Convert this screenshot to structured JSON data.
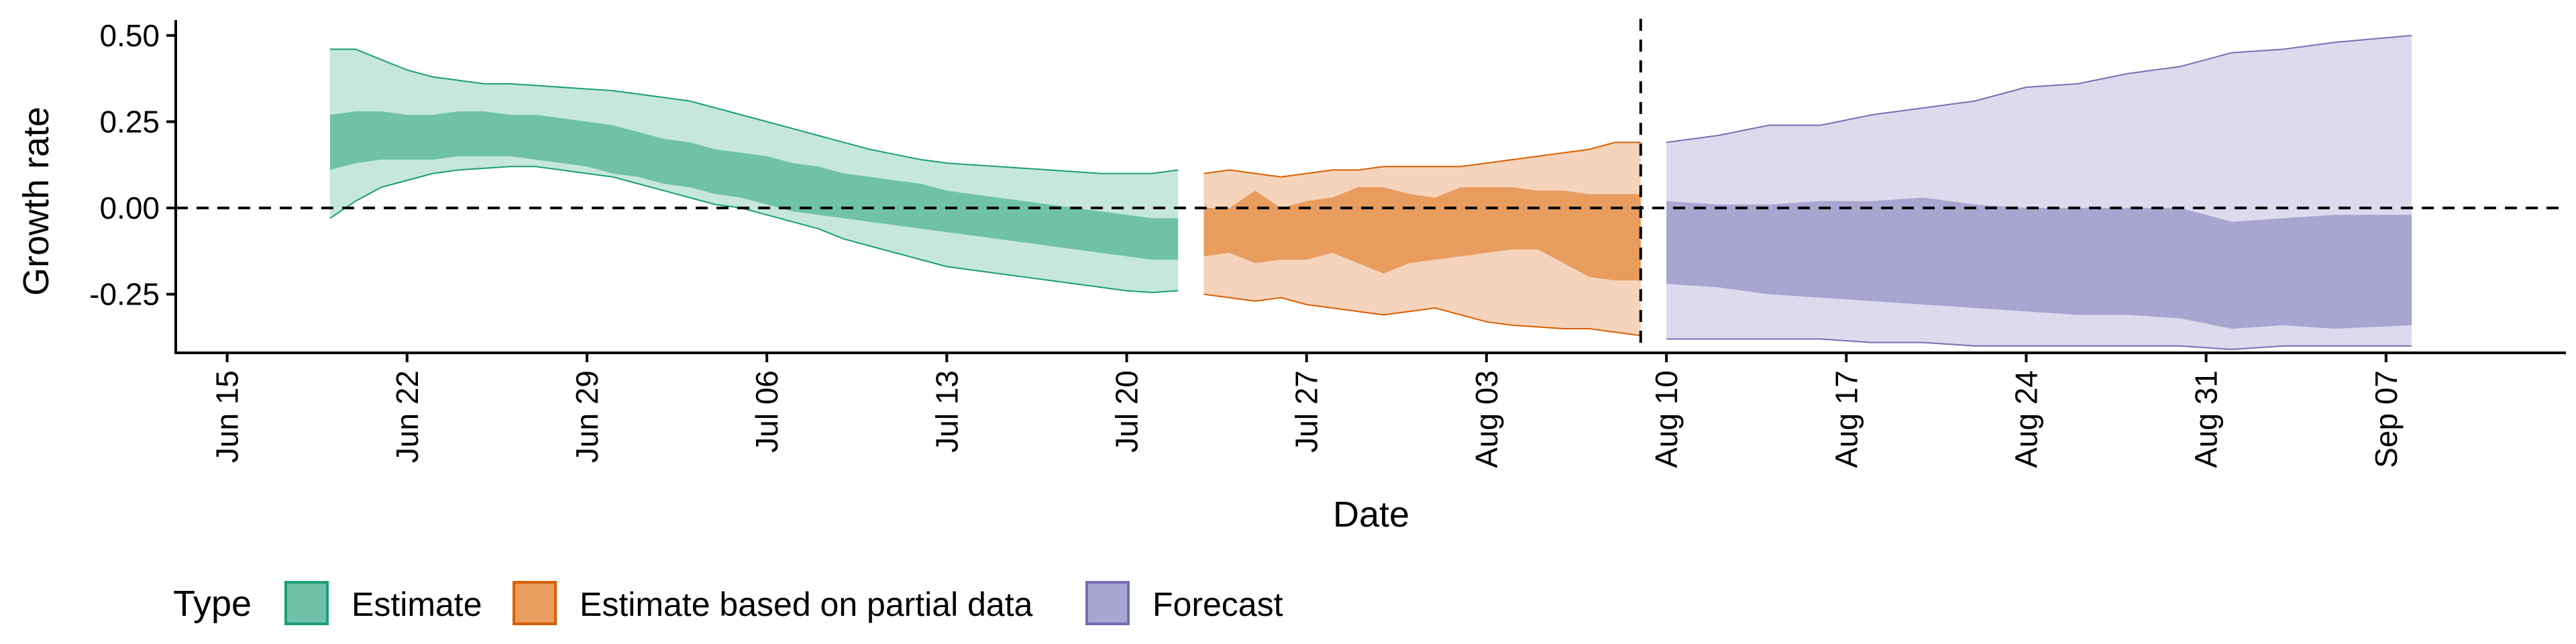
{
  "chart_data": {
    "type": "area",
    "xlabel": "Date",
    "ylabel": "Growth rate",
    "x_range": [
      "2020-06-13",
      "2020-09-14"
    ],
    "ylim": [
      -0.42,
      0.56
    ],
    "yticks": [
      {
        "value": 0.5,
        "label": "0.50"
      },
      {
        "value": 0.25,
        "label": "0.25"
      },
      {
        "value": 0.0,
        "label": "0.00"
      },
      {
        "value": -0.25,
        "label": "-0.25"
      }
    ],
    "xticks": [
      {
        "date": "2020-06-15",
        "label": "Jun 15"
      },
      {
        "date": "2020-06-22",
        "label": "Jun 22"
      },
      {
        "date": "2020-06-29",
        "label": "Jun 29"
      },
      {
        "date": "2020-07-06",
        "label": "Jul 06"
      },
      {
        "date": "2020-07-13",
        "label": "Jul 13"
      },
      {
        "date": "2020-07-20",
        "label": "Jul 20"
      },
      {
        "date": "2020-07-27",
        "label": "Jul 27"
      },
      {
        "date": "2020-08-03",
        "label": "Aug 03"
      },
      {
        "date": "2020-08-10",
        "label": "Aug 10"
      },
      {
        "date": "2020-08-17",
        "label": "Aug 17"
      },
      {
        "date": "2020-08-24",
        "label": "Aug 24"
      },
      {
        "date": "2020-08-31",
        "label": "Aug 31"
      },
      {
        "date": "2020-09-07",
        "label": "Sep 07"
      }
    ],
    "reference_lines": [
      {
        "axis": "y",
        "value": 0.0,
        "style": "dashed"
      },
      {
        "axis": "x",
        "date": "2020-08-09",
        "style": "dashed"
      }
    ],
    "grid": false,
    "legend": {
      "title": "Type",
      "position": "bottom-left",
      "entries": [
        {
          "label": "Estimate",
          "fill": "#6fc2a8",
          "stroke": "#1b9e77"
        },
        {
          "label": "Estimate based on partial data",
          "fill": "#e89c5e",
          "stroke": "#d95f02"
        },
        {
          "label": "Forecast",
          "fill": "#a9a5d1",
          "stroke": "#7570b3"
        }
      ]
    },
    "series": [
      {
        "name": "Estimate",
        "outer_fill": "#c5e7dc",
        "inner_fill": "#6fc2a8",
        "stroke": "#1b9e77",
        "x": [
          "2020-06-19",
          "2020-06-20",
          "2020-06-21",
          "2020-06-22",
          "2020-06-23",
          "2020-06-24",
          "2020-06-25",
          "2020-06-26",
          "2020-06-27",
          "2020-06-28",
          "2020-06-29",
          "2020-06-30",
          "2020-07-01",
          "2020-07-02",
          "2020-07-03",
          "2020-07-04",
          "2020-07-05",
          "2020-07-06",
          "2020-07-07",
          "2020-07-08",
          "2020-07-09",
          "2020-07-10",
          "2020-07-11",
          "2020-07-12",
          "2020-07-13",
          "2020-07-14",
          "2020-07-15",
          "2020-07-16",
          "2020-07-17",
          "2020-07-18",
          "2020-07-19",
          "2020-07-20",
          "2020-07-21",
          "2020-07-22"
        ],
        "upper90": [
          0.46,
          0.46,
          0.43,
          0.4,
          0.38,
          0.37,
          0.36,
          0.36,
          0.355,
          0.35,
          0.345,
          0.34,
          0.33,
          0.32,
          0.31,
          0.29,
          0.27,
          0.25,
          0.23,
          0.21,
          0.19,
          0.17,
          0.155,
          0.14,
          0.13,
          0.125,
          0.12,
          0.115,
          0.11,
          0.105,
          0.1,
          0.1,
          0.1,
          0.11
        ],
        "upper50": [
          0.27,
          0.28,
          0.28,
          0.27,
          0.27,
          0.28,
          0.28,
          0.27,
          0.27,
          0.26,
          0.25,
          0.24,
          0.22,
          0.2,
          0.19,
          0.17,
          0.16,
          0.15,
          0.13,
          0.12,
          0.1,
          0.09,
          0.08,
          0.07,
          0.05,
          0.04,
          0.03,
          0.02,
          0.01,
          0.0,
          -0.01,
          -0.02,
          -0.03,
          -0.03
        ],
        "lower50": [
          0.11,
          0.13,
          0.14,
          0.14,
          0.14,
          0.15,
          0.15,
          0.15,
          0.14,
          0.13,
          0.12,
          0.1,
          0.09,
          0.07,
          0.06,
          0.04,
          0.03,
          0.01,
          -0.01,
          -0.02,
          -0.03,
          -0.04,
          -0.05,
          -0.06,
          -0.07,
          -0.08,
          -0.09,
          -0.1,
          -0.11,
          -0.12,
          -0.13,
          -0.14,
          -0.15,
          -0.15
        ],
        "lower90": [
          -0.03,
          0.02,
          0.06,
          0.08,
          0.1,
          0.11,
          0.115,
          0.12,
          0.12,
          0.11,
          0.1,
          0.09,
          0.07,
          0.05,
          0.03,
          0.01,
          0.0,
          -0.02,
          -0.04,
          -0.06,
          -0.09,
          -0.11,
          -0.13,
          -0.15,
          -0.17,
          -0.18,
          -0.19,
          -0.2,
          -0.21,
          -0.22,
          -0.23,
          -0.24,
          -0.245,
          -0.24
        ]
      },
      {
        "name": "Estimate based on partial data",
        "outer_fill": "#f5d4bb",
        "inner_fill": "#e89c5e",
        "stroke": "#d95f02",
        "x": [
          "2020-07-23",
          "2020-07-24",
          "2020-07-25",
          "2020-07-26",
          "2020-07-27",
          "2020-07-28",
          "2020-07-29",
          "2020-07-30",
          "2020-07-31",
          "2020-08-01",
          "2020-08-02",
          "2020-08-03",
          "2020-08-04",
          "2020-08-05",
          "2020-08-06",
          "2020-08-07",
          "2020-08-08",
          "2020-08-09"
        ],
        "upper90": [
          0.1,
          0.11,
          0.1,
          0.09,
          0.1,
          0.11,
          0.11,
          0.12,
          0.12,
          0.12,
          0.12,
          0.13,
          0.14,
          0.15,
          0.16,
          0.17,
          0.19,
          0.19
        ],
        "upper50": [
          0.0,
          0.0,
          0.05,
          0.0,
          0.02,
          0.03,
          0.06,
          0.06,
          0.04,
          0.03,
          0.06,
          0.06,
          0.06,
          0.05,
          0.05,
          0.04,
          0.04,
          0.04
        ],
        "lower50": [
          -0.14,
          -0.13,
          -0.16,
          -0.15,
          -0.15,
          -0.13,
          -0.16,
          -0.19,
          -0.16,
          -0.15,
          -0.14,
          -0.13,
          -0.12,
          -0.12,
          -0.16,
          -0.2,
          -0.21,
          -0.21
        ],
        "lower90": [
          -0.25,
          -0.26,
          -0.27,
          -0.26,
          -0.28,
          -0.29,
          -0.3,
          -0.31,
          -0.3,
          -0.29,
          -0.31,
          -0.33,
          -0.34,
          -0.345,
          -0.35,
          -0.35,
          -0.36,
          -0.37
        ]
      },
      {
        "name": "Forecast",
        "outer_fill": "#dcdaec",
        "inner_fill": "#a9a5d1",
        "stroke": "#7570b3",
        "x": [
          "2020-08-10",
          "2020-08-12",
          "2020-08-14",
          "2020-08-16",
          "2020-08-18",
          "2020-08-20",
          "2020-08-22",
          "2020-08-24",
          "2020-08-26",
          "2020-08-28",
          "2020-08-30",
          "2020-09-01",
          "2020-09-03",
          "2020-09-05",
          "2020-09-08"
        ],
        "upper90": [
          0.19,
          0.21,
          0.24,
          0.24,
          0.27,
          0.29,
          0.31,
          0.35,
          0.36,
          0.39,
          0.41,
          0.45,
          0.46,
          0.48,
          0.5
        ],
        "upper50": [
          0.02,
          0.01,
          0.01,
          0.02,
          0.02,
          0.03,
          0.01,
          0.0,
          0.0,
          0.0,
          0.0,
          -0.04,
          -0.03,
          -0.02,
          -0.02
        ],
        "lower50": [
          -0.22,
          -0.23,
          -0.25,
          -0.26,
          -0.27,
          -0.28,
          -0.29,
          -0.3,
          -0.31,
          -0.31,
          -0.32,
          -0.35,
          -0.34,
          -0.35,
          -0.34
        ],
        "lower90": [
          -0.38,
          -0.38,
          -0.38,
          -0.38,
          -0.39,
          -0.39,
          -0.4,
          -0.4,
          -0.4,
          -0.4,
          -0.4,
          -0.41,
          -0.4,
          -0.4,
          -0.4
        ]
      }
    ]
  }
}
